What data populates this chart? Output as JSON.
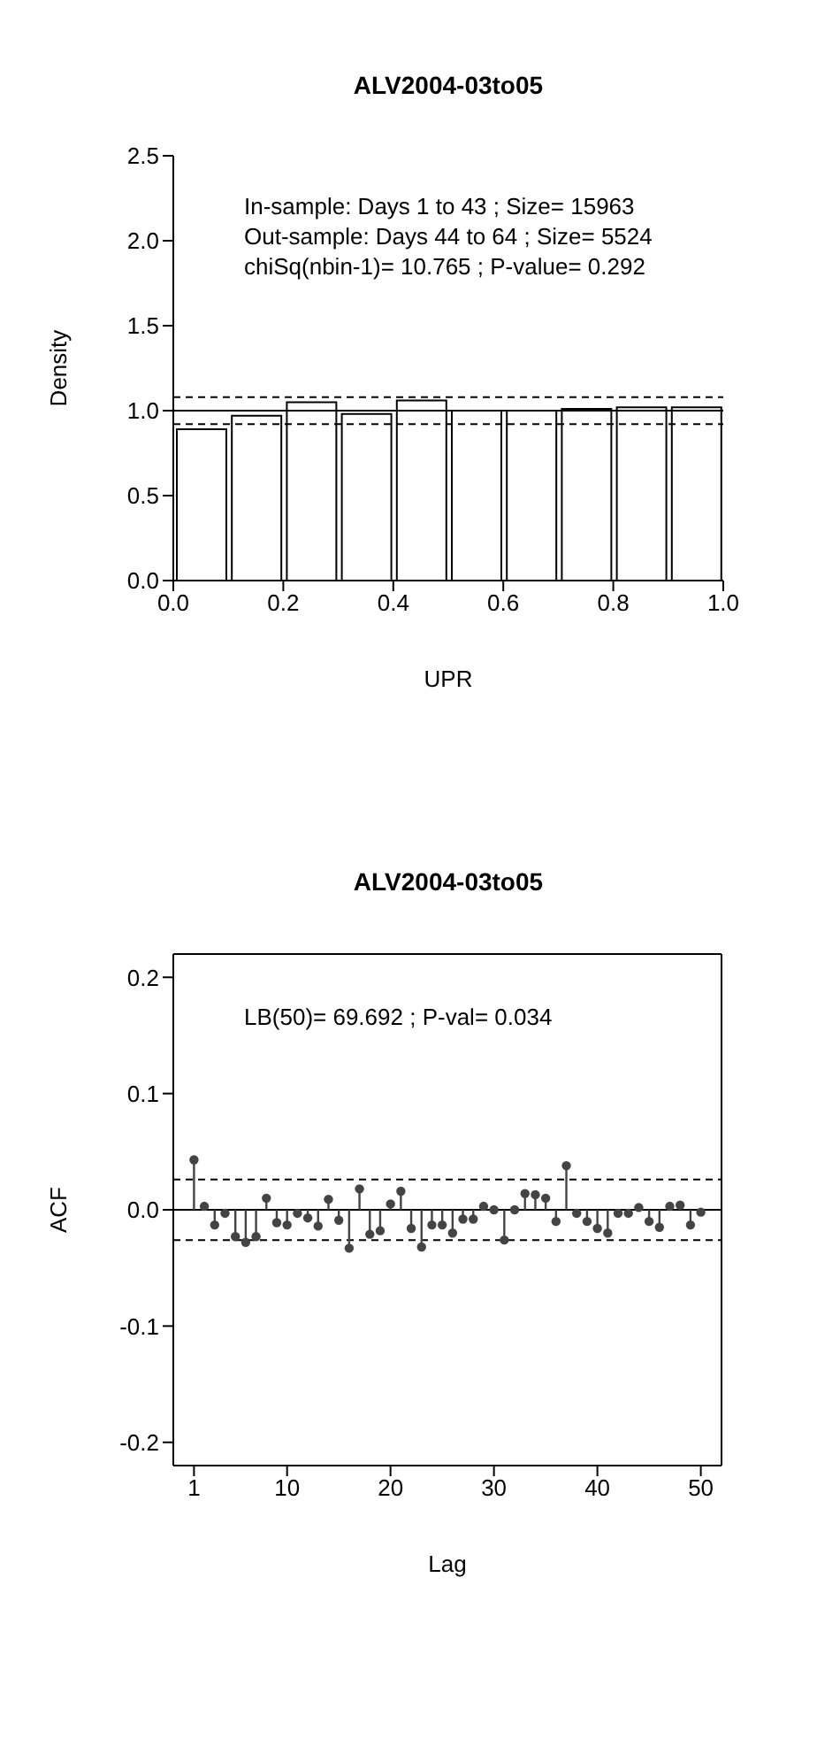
{
  "chart_data": [
    {
      "type": "histogram",
      "title": "ALV2004-03to05",
      "xlabel": "UPR",
      "ylabel": "Density",
      "bins": [
        0,
        0.1,
        0.2,
        0.3,
        0.4,
        0.5,
        0.6,
        0.7,
        0.8,
        0.9,
        1.0
      ],
      "values": [
        0.89,
        0.97,
        1.05,
        0.98,
        1.06,
        1.0,
        1.0,
        1.01,
        1.02,
        1.02
      ],
      "color": "#ffffff",
      "xlim": [
        0,
        1
      ],
      "xticks": [
        {
          "value": 0,
          "label": "0.0"
        },
        {
          "value": 0.2,
          "label": "0.2"
        },
        {
          "value": 0.4,
          "label": "0.4"
        },
        {
          "value": 0.6,
          "label": "0.6"
        },
        {
          "value": 0.8,
          "label": "0.8"
        },
        {
          "value": 1,
          "label": "1.0"
        }
      ],
      "ylim": [
        0,
        2.5
      ],
      "yticks": [
        {
          "value": 0,
          "label": "0.0"
        },
        {
          "value": 0.5,
          "label": "0.5"
        },
        {
          "value": 1,
          "label": "1.0"
        },
        {
          "value": 1.5,
          "label": "1.5"
        },
        {
          "value": 2,
          "label": "2.0"
        },
        {
          "value": 2.5,
          "label": "2.5"
        }
      ],
      "ref_lines": [
        {
          "axis": "y",
          "value": 1,
          "line_style": "solid"
        },
        {
          "axis": "y",
          "value": 0.92,
          "line_style": "dashed"
        },
        {
          "axis": "y",
          "value": 1.08,
          "line_style": "dashed"
        }
      ],
      "annotations": [
        "In-sample: Days 1 to 43 ; Size= 15963",
        "Out-sample: Days 44 to 64 ; Size= 5524",
        "chiSq(nbin-1)= 10.765 ; P-value= 0.292"
      ]
    },
    {
      "type": "lollipop",
      "title": "ALV2004-03to05",
      "xlabel": "Lag",
      "ylabel": "ACF",
      "x": [
        1,
        2,
        3,
        4,
        5,
        6,
        7,
        8,
        9,
        10,
        11,
        12,
        13,
        14,
        15,
        16,
        17,
        18,
        19,
        20,
        21,
        22,
        23,
        24,
        25,
        26,
        27,
        28,
        29,
        30,
        31,
        32,
        33,
        34,
        35,
        36,
        37,
        38,
        39,
        40,
        41,
        42,
        43,
        44,
        45,
        46,
        47,
        48,
        49,
        50
      ],
      "values": [
        0.043,
        0.003,
        -0.013,
        -0.003,
        -0.023,
        -0.028,
        -0.023,
        0.01,
        -0.011,
        -0.013,
        -0.003,
        -0.007,
        -0.014,
        0.009,
        -0.009,
        -0.033,
        0.018,
        -0.021,
        -0.018,
        0.005,
        0.016,
        -0.016,
        -0.032,
        -0.013,
        -0.013,
        -0.02,
        -0.008,
        -0.008,
        0.003,
        0,
        -0.026,
        0,
        0.014,
        0.013,
        0.01,
        -0.01,
        0.038,
        -0.003,
        -0.01,
        -0.016,
        -0.02,
        -0.003,
        -0.003,
        0.002,
        -0.01,
        -0.015,
        0.003,
        0.004,
        -0.013,
        -0.002
      ],
      "color": "#444444",
      "marker": "circle",
      "xlim": [
        -1,
        52
      ],
      "xticks": [
        1,
        10,
        20,
        30,
        40,
        50
      ],
      "ylim": [
        -0.22,
        0.22
      ],
      "yticks": [
        -0.2,
        -0.1,
        {
          "value": 0,
          "label": "0.0"
        },
        0.1,
        0.2
      ],
      "ref_lines": [
        {
          "axis": "y",
          "value": 0,
          "line_style": "solid"
        },
        {
          "axis": "y",
          "value": 0.026,
          "line_style": "dashed"
        },
        {
          "axis": "y",
          "value": -0.026,
          "line_style": "dashed"
        }
      ],
      "annotations": [
        "LB(50)= 69.692 ; P-val= 0.034"
      ]
    }
  ]
}
